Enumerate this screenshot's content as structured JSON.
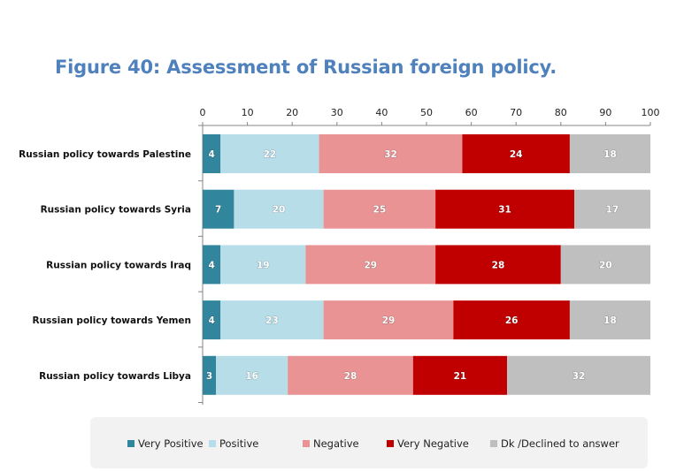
{
  "chart_data": {
    "type": "bar",
    "orientation": "horizontal",
    "stacked": true,
    "title": "Figure 40: Assessment of Russian foreign policy.",
    "xlabel": "",
    "ylabel": "",
    "xlim": [
      0,
      100
    ],
    "x_ticks": [
      0,
      10,
      20,
      30,
      40,
      50,
      60,
      70,
      80,
      90,
      100
    ],
    "grid": false,
    "legend_position": "bottom",
    "categories": [
      "Russian policy towards Palestine",
      "Russian policy towards Syria",
      "Russian policy towards Iraq",
      "Russian policy towards Yemen",
      "Russian policy towards Libya"
    ],
    "series": [
      {
        "name": "Very Positive",
        "color": "#31859c",
        "values": [
          4,
          7,
          4,
          4,
          3
        ]
      },
      {
        "name": "Positive",
        "color": "#b7dde8",
        "values": [
          22,
          20,
          19,
          23,
          16
        ]
      },
      {
        "name": "Negative",
        "color": "#e99394",
        "values": [
          32,
          25,
          29,
          29,
          28
        ]
      },
      {
        "name": "Very Negative",
        "color": "#c00000",
        "values": [
          24,
          31,
          28,
          26,
          21
        ]
      },
      {
        "name": "Dk /Declined to answer",
        "color": "#bfbfbf",
        "values": [
          18,
          17,
          20,
          18,
          32
        ]
      }
    ]
  }
}
